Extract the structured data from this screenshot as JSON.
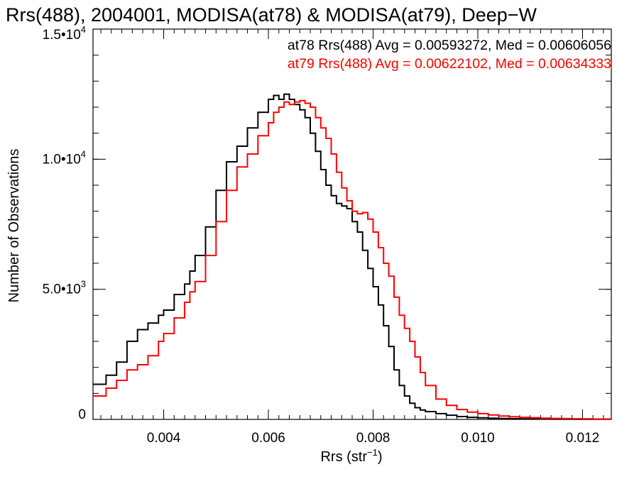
{
  "chart_data": {
    "type": "line",
    "title": "Rrs(488), 2004001, MODISA(at78) & MODISA(at79), Deep−W",
    "xlabel": "Rrs (str",
    "xlabel_sup": "−1",
    "xlabel_end": ")",
    "ylabel": "Number of Observations",
    "xlim": [
      0.00265,
      0.01255
    ],
    "ylim": [
      0,
      15000
    ],
    "x_ticks": [
      0.004,
      0.006,
      0.008,
      0.01,
      0.012
    ],
    "x_tick_labels": [
      "0.004",
      "0.006",
      "0.008",
      "0.010",
      "0.012"
    ],
    "y_ticks": [
      {
        "value": 0,
        "mantissa": "0",
        "exp": ""
      },
      {
        "value": 5000,
        "mantissa": "5.0•10",
        "exp": "3"
      },
      {
        "value": 10000,
        "mantissa": "1.0•10",
        "exp": "4"
      },
      {
        "value": 15000,
        "mantissa": "1.5•10",
        "exp": "4"
      }
    ],
    "grid": false,
    "legend_position": "top-right",
    "series": [
      {
        "legend": "at78 Rrs(488) Avg = 0.00593272, Med = 0.00606056",
        "color": "#000000",
        "x": [
          0.00265,
          0.0029,
          0.0031,
          0.0033,
          0.0035,
          0.0037,
          0.0039,
          0.004,
          0.0042,
          0.0044,
          0.0045,
          0.0046,
          0.0048,
          0.005,
          0.0052,
          0.0054,
          0.0056,
          0.0058,
          0.006,
          0.0061,
          0.0062,
          0.0063,
          0.0064,
          0.0065,
          0.0066,
          0.0067,
          0.0068,
          0.0069,
          0.007,
          0.0071,
          0.0072,
          0.0073,
          0.0074,
          0.0075,
          0.0076,
          0.0077,
          0.0078,
          0.0079,
          0.008,
          0.0081,
          0.0082,
          0.0083,
          0.0084,
          0.0085,
          0.0086,
          0.0087,
          0.0088,
          0.0089,
          0.009,
          0.0092,
          0.0094,
          0.0096,
          0.0098,
          0.01,
          0.0102,
          0.0104,
          0.0106,
          0.0108,
          0.011,
          0.0112,
          0.0114,
          0.0116,
          0.0118,
          0.012,
          0.0122,
          0.01255
        ],
        "y": [
          1350,
          1700,
          2200,
          3000,
          3450,
          3700,
          4000,
          4200,
          4800,
          5200,
          5700,
          6300,
          7400,
          8800,
          9900,
          10500,
          11200,
          11800,
          12300,
          12450,
          12300,
          12500,
          12300,
          12100,
          11900,
          11600,
          11000,
          10300,
          9600,
          9000,
          8600,
          8300,
          8200,
          8100,
          7600,
          7200,
          6500,
          5800,
          5100,
          4400,
          3600,
          2800,
          1900,
          1300,
          900,
          620,
          450,
          360,
          300,
          220,
          160,
          110,
          80,
          60,
          45,
          35,
          28,
          22,
          18,
          15,
          12,
          10,
          8,
          7,
          6,
          5
        ]
      },
      {
        "legend": "at79 Rrs(488) Avg = 0.00622102, Med = 0.00634333",
        "color": "#ff0000",
        "x": [
          0.00265,
          0.0029,
          0.0031,
          0.0033,
          0.0035,
          0.0037,
          0.0039,
          0.004,
          0.0042,
          0.0044,
          0.0045,
          0.0046,
          0.0048,
          0.005,
          0.0052,
          0.0054,
          0.0056,
          0.0058,
          0.006,
          0.0061,
          0.0062,
          0.0063,
          0.0064,
          0.0065,
          0.0066,
          0.0067,
          0.0068,
          0.0069,
          0.007,
          0.0071,
          0.0072,
          0.0073,
          0.0074,
          0.0075,
          0.0076,
          0.0077,
          0.0078,
          0.0079,
          0.008,
          0.0081,
          0.0082,
          0.0083,
          0.0084,
          0.0085,
          0.0086,
          0.0087,
          0.0088,
          0.0089,
          0.009,
          0.0092,
          0.0094,
          0.0096,
          0.0098,
          0.01,
          0.0102,
          0.0104,
          0.0106,
          0.0108,
          0.011,
          0.0112,
          0.0114,
          0.0116,
          0.0118,
          0.012,
          0.0122,
          0.01255
        ],
        "y": [
          900,
          1200,
          1500,
          1900,
          2100,
          2450,
          3000,
          3300,
          3900,
          4500,
          4900,
          5300,
          6300,
          7600,
          8800,
          9700,
          10200,
          10900,
          11400,
          11800,
          12000,
          12200,
          12100,
          12200,
          12250,
          12150,
          12000,
          11600,
          11200,
          10800,
          10200,
          9500,
          8900,
          8400,
          8000,
          7900,
          7950,
          7700,
          7200,
          6600,
          6000,
          5500,
          4700,
          4000,
          3500,
          3000,
          2400,
          1800,
          1300,
          780,
          540,
          380,
          280,
          220,
          170,
          130,
          100,
          80,
          65,
          50,
          38,
          30,
          24,
          18,
          14,
          10
        ]
      }
    ]
  }
}
